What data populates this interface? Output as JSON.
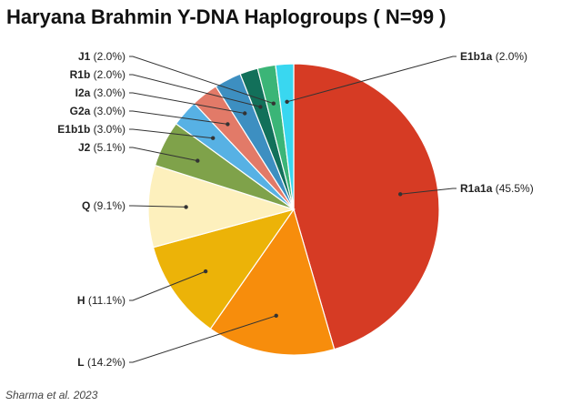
{
  "chart_data": {
    "type": "pie",
    "title": "Haryana Brahmin Y-DNA Haplogroups ( N=99 )",
    "source": "Sharma et al. 2023",
    "slices": [
      {
        "name": "R1a1a",
        "value": 45.5,
        "label": "(45.5%)",
        "color": "#d63b24"
      },
      {
        "name": "L",
        "value": 14.2,
        "label": "(14.2%)",
        "color": "#f78d0c"
      },
      {
        "name": "H",
        "value": 11.1,
        "label": "(11.1%)",
        "color": "#ecb308"
      },
      {
        "name": "Q",
        "value": 9.1,
        "label": "(9.1%)",
        "color": "#fdf0bd"
      },
      {
        "name": "J2",
        "value": 5.1,
        "label": "(5.1%)",
        "color": "#7fa24a"
      },
      {
        "name": "E1b1b",
        "value": 3.0,
        "label": "(3.0%)",
        "color": "#57b1e4"
      },
      {
        "name": "G2a",
        "value": 3.0,
        "label": "(3.0%)",
        "color": "#e27a68"
      },
      {
        "name": "I2a",
        "value": 3.0,
        "label": "(3.0%)",
        "color": "#3d8fc1"
      },
      {
        "name": "R1b",
        "value": 2.0,
        "label": "(2.0%)",
        "color": "#12705a"
      },
      {
        "name": "J1",
        "value": 2.0,
        "label": "(2.0%)",
        "color": "#3bb577"
      },
      {
        "name": "E1b1a",
        "value": 2.0,
        "label": "(2.0%)",
        "color": "#39d7f0"
      }
    ]
  }
}
